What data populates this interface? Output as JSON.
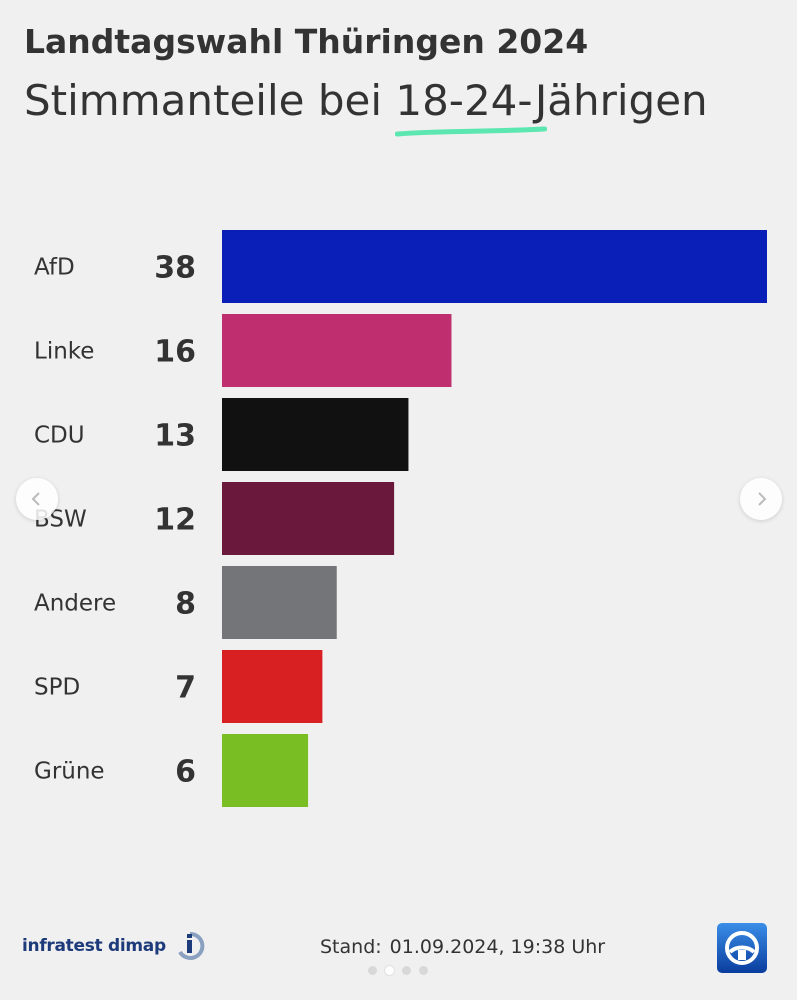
{
  "title": "Landtagswahl Thüringen 2024",
  "subtitle": {
    "before": "Stimmanteile bei ",
    "highlight": "18-24-J",
    "after": "ährigen"
  },
  "highlight_color": "#5ce6b0",
  "chart_data": {
    "type": "bar",
    "orientation": "horizontal",
    "title": "Landtagswahl Thüringen 2024",
    "subtitle": "Stimmanteile bei 18-24-Jährigen",
    "categories": [
      "AfD",
      "Linke",
      "CDU",
      "BSW",
      "Andere",
      "SPD",
      "Grüne"
    ],
    "values": [
      38,
      16,
      13,
      12,
      8,
      7,
      6
    ],
    "colors": [
      "#0a1fb8",
      "#bf2e6f",
      "#111111",
      "#6b183d",
      "#747578",
      "#d82023",
      "#79be22"
    ],
    "xlim": [
      0,
      38
    ],
    "grid": false,
    "legend": "none"
  },
  "footer": {
    "source": "infratest dimap",
    "stand_label": "Stand:",
    "stand_value": "01.09.2024, 19:38 Uhr"
  },
  "icons": {
    "prev": "chevron-left-icon",
    "next": "chevron-right-icon",
    "source_logo": "infratest-dimap-logo",
    "broadcaster_logo": "tagesschau-logo"
  }
}
